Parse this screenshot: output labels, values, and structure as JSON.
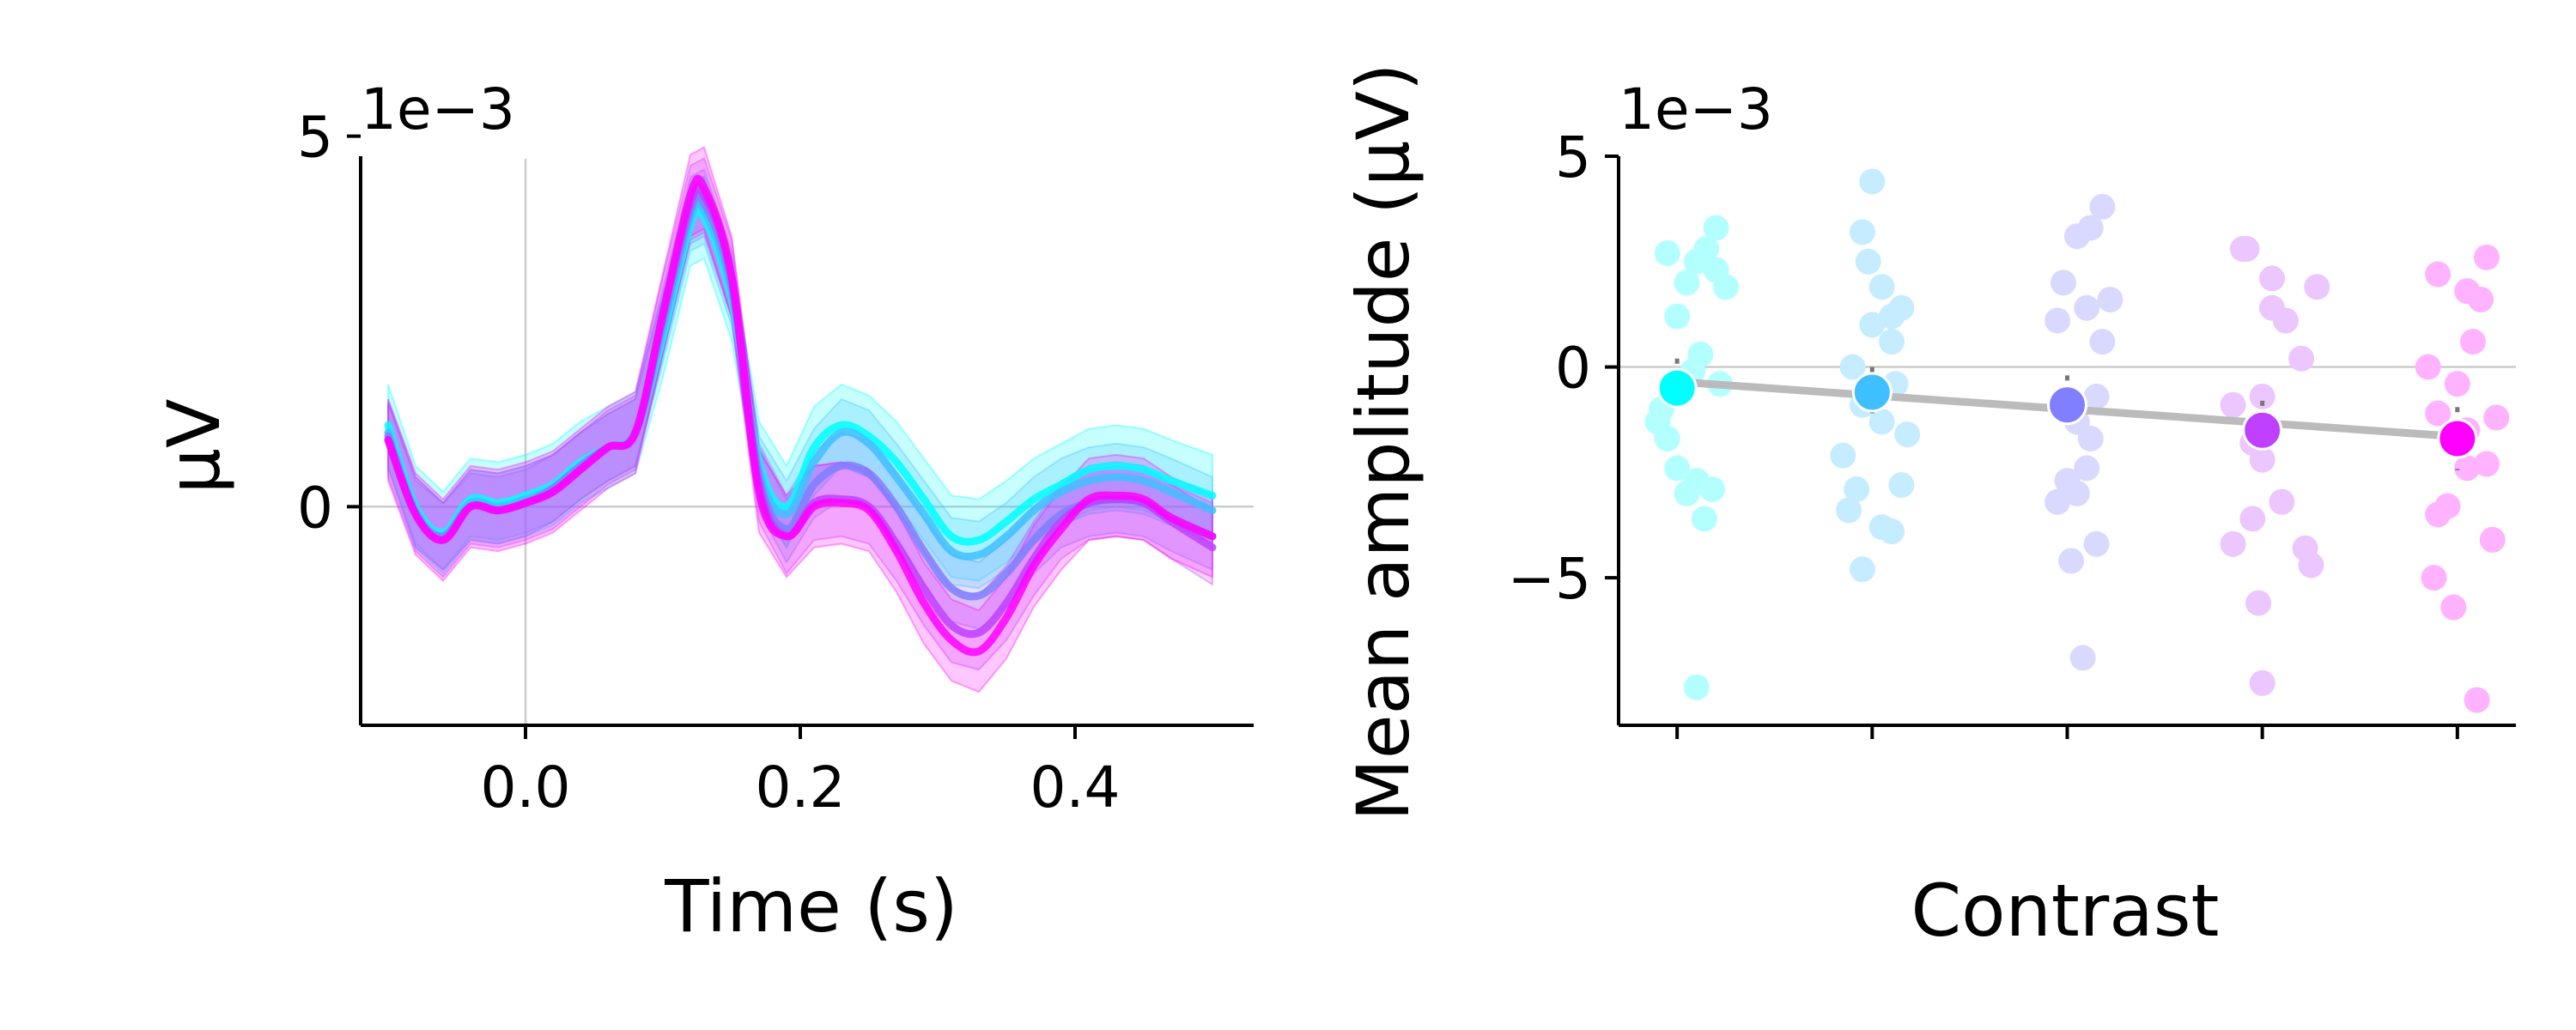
{
  "chart_data": [
    {
      "type": "line",
      "xlabel": "Time (s)",
      "ylabel": "μV",
      "offset_label": "1e−3",
      "xlim": [
        -0.12,
        0.53
      ],
      "ylim": [
        -2.95,
        5.1
      ],
      "scale": 0.001,
      "xticks": [
        0.0,
        0.2,
        0.4
      ],
      "xtick_labels": [
        "0.0",
        "0.2",
        "0.4"
      ],
      "yticks": [
        0,
        5
      ],
      "ytick_labels": [
        "0",
        "5"
      ],
      "reference_lines": {
        "x": 0.0,
        "y": 0.0
      },
      "x": [
        -0.1,
        -0.08,
        -0.06,
        -0.04,
        -0.02,
        0.0,
        0.02,
        0.04,
        0.06,
        0.08,
        0.1,
        0.12,
        0.13,
        0.15,
        0.17,
        0.19,
        0.21,
        0.23,
        0.25,
        0.27,
        0.29,
        0.31,
        0.33,
        0.35,
        0.37,
        0.39,
        0.41,
        0.43,
        0.45,
        0.47,
        0.5
      ],
      "series": [
        {
          "color": "#00ffff",
          "values": [
            1.1,
            0.0,
            -0.35,
            0.1,
            0.05,
            0.15,
            0.3,
            0.6,
            0.8,
            1.0,
            2.3,
            3.8,
            3.9,
            2.8,
            0.6,
            0.0,
            0.8,
            1.1,
            0.95,
            0.6,
            0.1,
            -0.4,
            -0.45,
            -0.2,
            0.1,
            0.3,
            0.5,
            0.55,
            0.5,
            0.35,
            0.15
          ],
          "band": 0.55
        },
        {
          "color": "#40bfff",
          "values": [
            1.0,
            -0.05,
            -0.4,
            0.05,
            0.0,
            0.1,
            0.25,
            0.55,
            0.8,
            1.0,
            2.4,
            3.9,
            4.0,
            2.9,
            0.5,
            -0.1,
            0.6,
            1.0,
            0.85,
            0.4,
            -0.1,
            -0.6,
            -0.65,
            -0.4,
            -0.05,
            0.2,
            0.35,
            0.4,
            0.35,
            0.2,
            -0.05
          ],
          "band": 0.45
        },
        {
          "color": "#7f7fff",
          "values": [
            0.95,
            -0.1,
            -0.4,
            0.0,
            -0.05,
            0.05,
            0.25,
            0.55,
            0.8,
            1.0,
            2.5,
            4.0,
            4.1,
            3.0,
            0.4,
            -0.3,
            0.3,
            0.55,
            0.45,
            0.0,
            -0.6,
            -1.1,
            -1.2,
            -0.9,
            -0.45,
            -0.1,
            0.05,
            0.1,
            0.05,
            -0.15,
            -0.4
          ],
          "band": 0.45
        },
        {
          "color": "#bf40ff",
          "values": [
            0.9,
            -0.1,
            -0.45,
            0.0,
            -0.05,
            0.05,
            0.2,
            0.5,
            0.8,
            1.0,
            2.6,
            4.1,
            4.2,
            3.1,
            0.3,
            -0.4,
            0.05,
            0.1,
            0.0,
            -0.5,
            -1.1,
            -1.6,
            -1.7,
            -1.3,
            -0.7,
            -0.2,
            0.05,
            0.1,
            0.05,
            -0.2,
            -0.55
          ],
          "band": 0.5
        },
        {
          "color": "#ff00ff",
          "values": [
            0.9,
            -0.1,
            -0.45,
            0.0,
            -0.05,
            0.05,
            0.2,
            0.5,
            0.8,
            1.0,
            2.6,
            4.2,
            4.3,
            3.1,
            0.2,
            -0.4,
            0.0,
            0.05,
            -0.05,
            -0.6,
            -1.3,
            -1.8,
            -1.95,
            -1.5,
            -0.8,
            -0.3,
            0.1,
            0.15,
            0.1,
            -0.15,
            -0.4
          ],
          "band": 0.55
        }
      ]
    },
    {
      "type": "scatter",
      "xlabel": "Contrast",
      "ylabel": "Mean amplitude (μV)",
      "offset_label": "1e−3",
      "xlim": [
        -0.3,
        4.3
      ],
      "ylim": [
        -8.5,
        5.0
      ],
      "scale": 0.001,
      "yticks": [
        -5,
        0,
        5
      ],
      "ytick_labels": [
        "−5",
        "0",
        "5"
      ],
      "categories": [
        "",
        "",
        "",
        "",
        ""
      ],
      "colors": [
        "#00ffff",
        "#40bfff",
        "#7f7fff",
        "#bf40ff",
        "#ff00ff"
      ],
      "reference_lines": {
        "y": 0.0
      },
      "trend_line": {
        "color": "#bbbbbb",
        "start": -0.35,
        "end": -1.65
      },
      "means": [
        -0.5,
        -0.6,
        -0.9,
        -1.5,
        -1.7
      ],
      "errors": [
        0.7,
        0.6,
        0.7,
        0.7,
        0.75
      ],
      "points": [
        [
          [
            0.15,
            2.8
          ],
          [
            0.1,
            2.5
          ],
          [
            0.2,
            2.3
          ],
          [
            0.05,
            2.0
          ],
          [
            0.25,
            1.9
          ],
          [
            0.0,
            1.2
          ],
          [
            0.12,
            0.3
          ],
          [
            0.08,
            -0.1
          ],
          [
            -0.08,
            -1.0
          ],
          [
            -0.1,
            -1.3
          ],
          [
            -0.05,
            -1.7
          ],
          [
            0.22,
            -0.4
          ],
          [
            0.0,
            -2.4
          ],
          [
            0.1,
            -2.7
          ],
          [
            0.05,
            -3.0
          ],
          [
            0.18,
            -2.9
          ],
          [
            0.14,
            -3.6
          ],
          [
            0.1,
            -7.6
          ],
          [
            0.2,
            3.3
          ],
          [
            -0.05,
            2.7
          ]
        ],
        [
          [
            0.0,
            4.4
          ],
          [
            -0.05,
            3.2
          ],
          [
            -0.02,
            2.5
          ],
          [
            0.05,
            1.9
          ],
          [
            0.1,
            1.2
          ],
          [
            0.15,
            1.4
          ],
          [
            0.0,
            1.0
          ],
          [
            -0.1,
            0.0
          ],
          [
            0.1,
            0.6
          ],
          [
            0.12,
            -0.4
          ],
          [
            -0.05,
            -0.9
          ],
          [
            0.05,
            -1.3
          ],
          [
            0.18,
            -1.6
          ],
          [
            -0.15,
            -2.1
          ],
          [
            0.15,
            -2.8
          ],
          [
            -0.08,
            -2.9
          ],
          [
            -0.12,
            -3.4
          ],
          [
            0.05,
            -3.8
          ],
          [
            0.1,
            -3.9
          ],
          [
            -0.05,
            -4.8
          ]
        ],
        [
          [
            0.18,
            3.8
          ],
          [
            0.12,
            3.3
          ],
          [
            0.05,
            3.1
          ],
          [
            -0.02,
            2.0
          ],
          [
            0.1,
            1.4
          ],
          [
            0.22,
            1.6
          ],
          [
            0.18,
            0.6
          ],
          [
            -0.05,
            1.1
          ],
          [
            0.15,
            -0.7
          ],
          [
            0.05,
            -1.3
          ],
          [
            0.12,
            -1.7
          ],
          [
            0.0,
            -2.7
          ],
          [
            0.05,
            -3.0
          ],
          [
            -0.05,
            -3.2
          ],
          [
            0.1,
            -2.4
          ],
          [
            0.15,
            -4.2
          ],
          [
            0.02,
            -4.6
          ],
          [
            0.08,
            -6.9
          ]
        ],
        [
          [
            -0.1,
            2.8
          ],
          [
            -0.08,
            2.8
          ],
          [
            0.05,
            2.1
          ],
          [
            0.28,
            1.9
          ],
          [
            0.05,
            1.4
          ],
          [
            0.12,
            1.1
          ],
          [
            0.2,
            0.2
          ],
          [
            0.0,
            -0.7
          ],
          [
            -0.15,
            -0.9
          ],
          [
            -0.05,
            -1.8
          ],
          [
            0.0,
            -2.2
          ],
          [
            0.1,
            -3.2
          ],
          [
            -0.05,
            -3.6
          ],
          [
            -0.15,
            -4.2
          ],
          [
            0.22,
            -4.3
          ],
          [
            0.25,
            -4.7
          ],
          [
            -0.02,
            -5.6
          ],
          [
            0.0,
            -7.5
          ]
        ],
        [
          [
            -0.1,
            2.2
          ],
          [
            0.05,
            1.8
          ],
          [
            0.15,
            2.6
          ],
          [
            0.12,
            1.6
          ],
          [
            0.08,
            0.6
          ],
          [
            -0.15,
            0.0
          ],
          [
            0.0,
            -0.4
          ],
          [
            -0.1,
            -1.1
          ],
          [
            0.2,
            -1.2
          ],
          [
            0.15,
            -2.3
          ],
          [
            0.05,
            -2.4
          ],
          [
            -0.05,
            -3.3
          ],
          [
            -0.1,
            -3.5
          ],
          [
            0.18,
            -4.1
          ],
          [
            -0.12,
            -5.0
          ],
          [
            -0.02,
            -5.7
          ],
          [
            0.1,
            -7.9
          ],
          [
            0.05,
            -1.5
          ]
        ]
      ]
    }
  ]
}
